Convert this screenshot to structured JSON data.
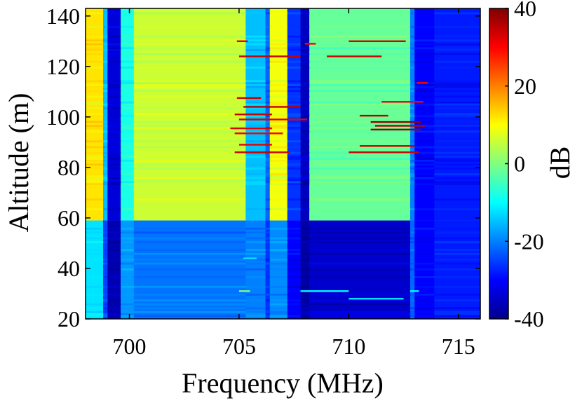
{
  "chart_data": {
    "type": "heatmap",
    "title": "",
    "xlabel": "Frequency (MHz)",
    "ylabel": "Altitude (m)",
    "xlim": [
      698,
      716
    ],
    "ylim": [
      20,
      143
    ],
    "xticks": [
      700,
      705,
      710,
      715
    ],
    "xtick_labels": [
      "700",
      "705",
      "710",
      "715"
    ],
    "yticks": [
      20,
      40,
      60,
      80,
      100,
      120,
      140
    ],
    "ytick_labels": [
      "20",
      "40",
      "60",
      "80",
      "100",
      "120",
      "140"
    ],
    "colorbar": {
      "label": "dB",
      "colormap": "jet",
      "range": [
        -40,
        40
      ],
      "ticks": [
        -40,
        -20,
        0,
        20,
        40
      ],
      "tick_labels": [
        "-40",
        "-20",
        "0",
        "20",
        "40"
      ]
    },
    "grid": false,
    "frequency_bands": [
      {
        "f0": 698.0,
        "f1": 698.8,
        "low": -12,
        "high": 12
      },
      {
        "f0": 698.8,
        "f1": 699.0,
        "low": -25,
        "high": -15
      },
      {
        "f0": 699.0,
        "f1": 699.6,
        "low": -36,
        "high": -33
      },
      {
        "f0": 699.6,
        "f1": 700.2,
        "low": -18,
        "high": -8
      },
      {
        "f0": 700.2,
        "f1": 705.3,
        "low": -21,
        "high": 6
      },
      {
        "f0": 705.3,
        "f1": 706.2,
        "low": -20,
        "high": -15
      },
      {
        "f0": 706.2,
        "f1": 706.4,
        "low": -26,
        "high": -22
      },
      {
        "f0": 706.4,
        "f1": 707.2,
        "low": -19,
        "high": 9
      },
      {
        "f0": 707.2,
        "f1": 707.8,
        "low": -30,
        "high": -26
      },
      {
        "f0": 707.8,
        "f1": 708.2,
        "low": -37,
        "high": -35
      },
      {
        "f0": 708.2,
        "f1": 712.8,
        "low": -34,
        "high": -2
      },
      {
        "f0": 712.8,
        "f1": 713.0,
        "low": -22,
        "high": -20
      },
      {
        "f0": 713.0,
        "f1": 713.9,
        "low": -30,
        "high": -30
      },
      {
        "f0": 713.9,
        "f1": 716.0,
        "low": -28,
        "high": -28
      }
    ],
    "transition_altitude_m": 59,
    "hot_lines": [
      {
        "alt": 130,
        "f0": 704.9,
        "f1": 705.4,
        "value": 32
      },
      {
        "alt": 129,
        "f0": 708.0,
        "f1": 708.5,
        "value": 30
      },
      {
        "alt": 130,
        "f0": 710.0,
        "f1": 712.6,
        "value": 33
      },
      {
        "alt": 124,
        "f0": 705.0,
        "f1": 707.8,
        "value": 34
      },
      {
        "alt": 124,
        "f0": 709.0,
        "f1": 711.5,
        "value": 34
      },
      {
        "alt": 113.5,
        "f0": 713.1,
        "f1": 713.6,
        "value": 30
      },
      {
        "alt": 107.5,
        "f0": 704.9,
        "f1": 706.0,
        "value": 34
      },
      {
        "alt": 106,
        "f0": 711.5,
        "f1": 713.4,
        "value": 30
      },
      {
        "alt": 104,
        "f0": 705.2,
        "f1": 707.8,
        "value": 35
      },
      {
        "alt": 101,
        "f0": 704.8,
        "f1": 706.5,
        "value": 34
      },
      {
        "alt": 100.5,
        "f0": 710.5,
        "f1": 711.8,
        "value": 35
      },
      {
        "alt": 99,
        "f0": 705.0,
        "f1": 708.1,
        "value": 32
      },
      {
        "alt": 98,
        "f0": 711.0,
        "f1": 713.3,
        "value": 38
      },
      {
        "alt": 96.5,
        "f0": 711.2,
        "f1": 713.5,
        "value": 36
      },
      {
        "alt": 95.5,
        "f0": 704.6,
        "f1": 706.5,
        "value": 32
      },
      {
        "alt": 95,
        "f0": 711.0,
        "f1": 713.3,
        "value": 38
      },
      {
        "alt": 93.5,
        "f0": 704.8,
        "f1": 707.0,
        "value": 30
      },
      {
        "alt": 89,
        "f0": 705.0,
        "f1": 706.5,
        "value": 32
      },
      {
        "alt": 88.5,
        "f0": 710.5,
        "f1": 713.0,
        "value": 34
      },
      {
        "alt": 86,
        "f0": 704.8,
        "f1": 707.3,
        "value": 34
      },
      {
        "alt": 86,
        "f0": 710.0,
        "f1": 713.2,
        "value": 34
      }
    ],
    "cold_lines": [
      {
        "alt": 44,
        "f0": 705.2,
        "f1": 705.8,
        "value": -12
      },
      {
        "alt": 31,
        "f0": 705.0,
        "f1": 705.5,
        "value": 0
      },
      {
        "alt": 31,
        "f0": 707.8,
        "f1": 710.0,
        "value": -10
      },
      {
        "alt": 31,
        "f0": 712.8,
        "f1": 713.2,
        "value": -10
      },
      {
        "alt": 28,
        "f0": 710.0,
        "f1": 712.5,
        "value": -12
      }
    ]
  }
}
